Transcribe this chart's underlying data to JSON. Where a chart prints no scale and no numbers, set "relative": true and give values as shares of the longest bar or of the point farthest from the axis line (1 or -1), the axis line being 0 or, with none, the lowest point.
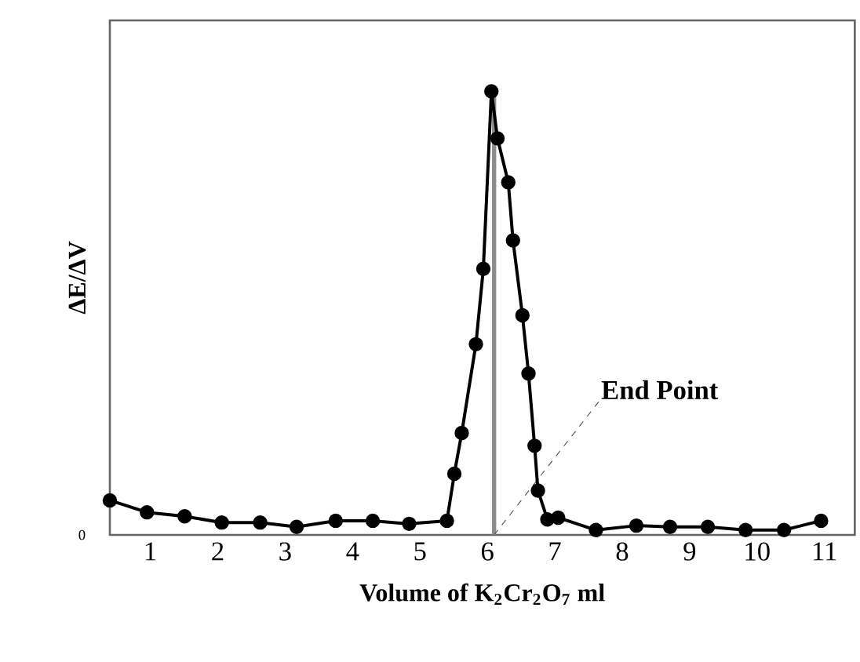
{
  "chart_data": {
    "type": "line",
    "relative": true,
    "xlabel": "Volume of K$_{2}$Cr$_{2}$O$_{7}$  ml",
    "ylabel": "ΔE/ΔV",
    "xlim": [
      0.4,
      11.45
    ],
    "xticks": [
      1,
      2,
      3,
      4,
      5,
      6,
      7,
      8,
      9,
      10,
      11
    ],
    "series": [
      {
        "color": "#000000",
        "x": [
          0.4,
          0.95,
          1.51,
          2.06,
          2.63,
          3.17,
          3.75,
          4.3,
          4.84,
          5.4,
          5.51,
          5.62,
          5.83,
          5.94,
          6.06,
          6.15,
          6.31,
          6.38,
          6.52,
          6.61,
          6.7,
          6.75,
          6.89,
          7.05,
          7.61,
          8.21,
          8.71,
          9.27,
          9.83,
          10.4,
          10.95
        ],
        "values": [
          0.078,
          0.051,
          0.042,
          0.028,
          0.028,
          0.018,
          0.032,
          0.032,
          0.025,
          0.032,
          0.138,
          0.23,
          0.43,
          0.6,
          1.0,
          0.894,
          0.795,
          0.664,
          0.495,
          0.364,
          0.201,
          0.1,
          0.035,
          0.039,
          0.011,
          0.021,
          0.018,
          0.018,
          0.011,
          0.011,
          0.032
        ]
      }
    ],
    "marker": "circle",
    "line_style": "solid",
    "grid": false,
    "ref_lines": [
      {
        "axis": "x",
        "value": 6.1,
        "label": "End Point",
        "color": "#8c8c8c"
      }
    ],
    "annotations": [
      "0"
    ]
  }
}
